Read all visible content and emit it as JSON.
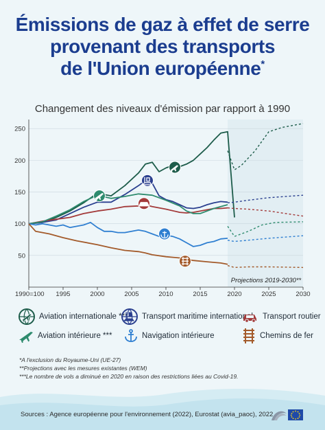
{
  "title_lines": [
    "Émissions de gaz à effet de serre",
    "provenant des transports",
    "de l'Union européenne"
  ],
  "title_star": "*",
  "subtitle": "Changement des niveaux d'émission par rapport à 1990",
  "projection_label": "Projections 2019-2030**",
  "legend": {
    "aviation_internationale": "Aviation internationale ***",
    "transport_maritime": "Transport maritime international",
    "transport_routier": "Transport routier",
    "aviation_interieure": "Aviation intérieure ***",
    "navigation_interieure": "Navigation intérieure",
    "chemins_de_fer": "Chemins de fer"
  },
  "notes": [
    "*A l'exclusion du Royaume-Uni (UE-27)",
    "**Projections avec les mesures existantes (WEM)",
    "***Le nombre de vols a diminué en 2020 en raison des restrictions liées au Covid-19."
  ],
  "source": "Sources : Agence européenne pour l'environnement (2022), Eurostat (avia_paoc), 2022",
  "colors": {
    "aviation_internationale": "#1d5c4a",
    "transport_maritime": "#2a3f8f",
    "transport_routier": "#a33a3a",
    "aviation_interieure": "#2e8b6e",
    "navigation_interieure": "#2f7fd1",
    "chemins_de_fer": "#a35a2a"
  },
  "chart_data": {
    "type": "line",
    "xlim": [
      1990,
      2030
    ],
    "ylim": [
      0,
      260
    ],
    "x_ticks": [
      1990,
      1995,
      2000,
      2005,
      2010,
      2015,
      2020,
      2025,
      2030
    ],
    "x_tick_labels": [
      "1990=100",
      "1995",
      "2000",
      "2005",
      "2010",
      "2015",
      "2020",
      "2025",
      "2030"
    ],
    "y_ticks": [
      50,
      100,
      150,
      200,
      250
    ],
    "y_tick_labels": [
      "50",
      "100",
      "150",
      "200",
      "250"
    ],
    "projection_start": 2019,
    "series": [
      {
        "key": "aviation_internationale",
        "icon": "airplane-globe-icon",
        "historic": [
          [
            1990,
            100
          ],
          [
            1992,
            102
          ],
          [
            1994,
            110
          ],
          [
            1996,
            120
          ],
          [
            1998,
            133
          ],
          [
            2000,
            148
          ],
          [
            2001,
            146
          ],
          [
            2002,
            144
          ],
          [
            2004,
            160
          ],
          [
            2006,
            180
          ],
          [
            2007,
            194
          ],
          [
            2008,
            197
          ],
          [
            2009,
            182
          ],
          [
            2010,
            188
          ],
          [
            2011,
            192
          ],
          [
            2012,
            190
          ],
          [
            2013,
            194
          ],
          [
            2014,
            200
          ],
          [
            2015,
            210
          ],
          [
            2016,
            220
          ],
          [
            2017,
            232
          ],
          [
            2018,
            243
          ],
          [
            2019,
            245
          ],
          [
            2020,
            110
          ]
        ],
        "projection": [
          [
            2019,
            215
          ],
          [
            2020,
            185
          ],
          [
            2021,
            192
          ],
          [
            2023,
            215
          ],
          [
            2025,
            245
          ],
          [
            2027,
            252
          ],
          [
            2030,
            258
          ]
        ]
      },
      {
        "key": "transport_maritime",
        "icon": "ship-globe-icon",
        "historic": [
          [
            1990,
            100
          ],
          [
            1992,
            102
          ],
          [
            1994,
            106
          ],
          [
            1996,
            116
          ],
          [
            1998,
            126
          ],
          [
            2000,
            134
          ],
          [
            2002,
            134
          ],
          [
            2004,
            146
          ],
          [
            2006,
            160
          ],
          [
            2007,
            168
          ],
          [
            2008,
            164
          ],
          [
            2009,
            144
          ],
          [
            2010,
            138
          ],
          [
            2011,
            135
          ],
          [
            2012,
            130
          ],
          [
            2013,
            125
          ],
          [
            2014,
            124
          ],
          [
            2015,
            126
          ],
          [
            2016,
            130
          ],
          [
            2017,
            133
          ],
          [
            2018,
            135
          ],
          [
            2019,
            134
          ]
        ],
        "projection": [
          [
            2019,
            133
          ],
          [
            2020,
            134
          ],
          [
            2022,
            137
          ],
          [
            2025,
            141
          ],
          [
            2030,
            145
          ]
        ]
      },
      {
        "key": "transport_routier",
        "icon": "car-icon",
        "historic": [
          [
            1990,
            100
          ],
          [
            1992,
            104
          ],
          [
            1994,
            107
          ],
          [
            1996,
            110
          ],
          [
            1998,
            116
          ],
          [
            2000,
            120
          ],
          [
            2002,
            123
          ],
          [
            2004,
            127
          ],
          [
            2006,
            128
          ],
          [
            2007,
            130
          ],
          [
            2008,
            127
          ],
          [
            2010,
            123
          ],
          [
            2012,
            118
          ],
          [
            2013,
            117
          ],
          [
            2014,
            118
          ],
          [
            2015,
            120
          ],
          [
            2016,
            122
          ],
          [
            2017,
            124
          ],
          [
            2018,
            124
          ],
          [
            2019,
            125
          ]
        ],
        "projection": [
          [
            2019,
            125
          ],
          [
            2020,
            124
          ],
          [
            2022,
            123
          ],
          [
            2025,
            120
          ],
          [
            2030,
            112
          ]
        ]
      },
      {
        "key": "aviation_interieure",
        "icon": "airplane-icon",
        "historic": [
          [
            1990,
            100
          ],
          [
            1992,
            103
          ],
          [
            1994,
            112
          ],
          [
            1996,
            122
          ],
          [
            1998,
            135
          ],
          [
            2000,
            145
          ],
          [
            2002,
            140
          ],
          [
            2004,
            143
          ],
          [
            2006,
            147
          ],
          [
            2008,
            145
          ],
          [
            2010,
            137
          ],
          [
            2012,
            128
          ],
          [
            2013,
            120
          ],
          [
            2014,
            116
          ],
          [
            2015,
            116
          ],
          [
            2016,
            120
          ],
          [
            2017,
            124
          ],
          [
            2018,
            127
          ],
          [
            2019,
            130
          ]
        ],
        "projection": [
          [
            2019,
            96
          ],
          [
            2020,
            80
          ],
          [
            2022,
            88
          ],
          [
            2024,
            98
          ],
          [
            2026,
            102
          ],
          [
            2030,
            103
          ]
        ]
      },
      {
        "key": "navigation_interieure",
        "icon": "anchor-icon",
        "historic": [
          [
            1990,
            100
          ],
          [
            1991,
            98
          ],
          [
            1992,
            100
          ],
          [
            1993,
            98
          ],
          [
            1994,
            96
          ],
          [
            1995,
            98
          ],
          [
            1996,
            94
          ],
          [
            1997,
            96
          ],
          [
            1998,
            98
          ],
          [
            1999,
            102
          ],
          [
            2000,
            94
          ],
          [
            2001,
            88
          ],
          [
            2002,
            88
          ],
          [
            2003,
            86
          ],
          [
            2004,
            86
          ],
          [
            2005,
            88
          ],
          [
            2006,
            90
          ],
          [
            2007,
            88
          ],
          [
            2008,
            84
          ],
          [
            2009,
            80
          ],
          [
            2010,
            82
          ],
          [
            2011,
            80
          ],
          [
            2012,
            76
          ],
          [
            2013,
            70
          ],
          [
            2014,
            64
          ],
          [
            2015,
            66
          ],
          [
            2016,
            70
          ],
          [
            2017,
            72
          ],
          [
            2018,
            76
          ],
          [
            2019,
            77
          ]
        ],
        "projection": [
          [
            2019,
            74
          ],
          [
            2020,
            72
          ],
          [
            2022,
            74
          ],
          [
            2025,
            77
          ],
          [
            2030,
            81
          ]
        ]
      },
      {
        "key": "chemins_de_fer",
        "icon": "rail-tracks-icon",
        "historic": [
          [
            1990,
            100
          ],
          [
            1991,
            88
          ],
          [
            1993,
            84
          ],
          [
            1995,
            78
          ],
          [
            1997,
            73
          ],
          [
            2000,
            67
          ],
          [
            2002,
            62
          ],
          [
            2004,
            58
          ],
          [
            2006,
            56
          ],
          [
            2007,
            54
          ],
          [
            2008,
            51
          ],
          [
            2010,
            48
          ],
          [
            2012,
            46
          ],
          [
            2014,
            42
          ],
          [
            2016,
            40
          ],
          [
            2018,
            38
          ],
          [
            2019,
            36
          ]
        ],
        "projection": [
          [
            2019,
            34
          ],
          [
            2020,
            31
          ],
          [
            2022,
            32
          ],
          [
            2025,
            32
          ],
          [
            2030,
            31
          ]
        ]
      }
    ],
    "icon_positions": [
      {
        "key": "aviation_internationale",
        "x": 2011.3,
        "y": 189
      },
      {
        "key": "transport_maritime",
        "x": 2007.3,
        "y": 168
      },
      {
        "key": "transport_routier",
        "x": 2006.8,
        "y": 132
      },
      {
        "key": "aviation_interieure",
        "x": 2000.3,
        "y": 144
      },
      {
        "key": "navigation_interieure",
        "x": 2009.8,
        "y": 84
      },
      {
        "key": "chemins_de_fer",
        "x": 2012.8,
        "y": 41
      }
    ]
  }
}
